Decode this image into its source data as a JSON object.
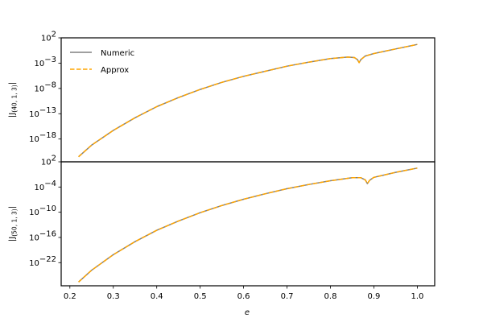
{
  "chart_data": [
    {
      "type": "line",
      "panel": "top",
      "ylabel": "|J_(40,1,3)|",
      "ylabel_main": "|J",
      "ylabel_sub": "(40, 1, 3)",
      "ylabel_close": "|",
      "yscale": "log",
      "ylim_log10": [
        -22.5,
        2
      ],
      "yticks": [
        {
          "exp": "2",
          "value": 2
        },
        {
          "exp": "−3",
          "value": -3
        },
        {
          "exp": "−8",
          "value": -8
        },
        {
          "exp": "−13",
          "value": -13
        },
        {
          "exp": "−18",
          "value": -18
        }
      ],
      "legend": [
        {
          "label": "Numeric",
          "style": "solid",
          "color": "#808080"
        },
        {
          "label": "Approx",
          "style": "dashed",
          "color": "#FFA500"
        }
      ],
      "series": [
        {
          "name": "Numeric",
          "x": [
            0.22,
            0.25,
            0.3,
            0.35,
            0.4,
            0.45,
            0.5,
            0.55,
            0.6,
            0.65,
            0.7,
            0.75,
            0.8,
            0.84,
            0.855,
            0.862,
            0.866,
            0.87,
            0.88,
            0.9,
            0.95,
            1.0
          ],
          "log10_y": [
            -21.5,
            -19.2,
            -16.3,
            -13.8,
            -11.6,
            -9.8,
            -8.2,
            -6.8,
            -5.6,
            -4.6,
            -3.6,
            -2.8,
            -2.1,
            -1.8,
            -1.9,
            -2.3,
            -2.9,
            -2.3,
            -1.6,
            -1.1,
            -0.2,
            0.7
          ]
        },
        {
          "name": "Approx",
          "x": [
            0.22,
            0.25,
            0.3,
            0.35,
            0.4,
            0.45,
            0.5,
            0.55,
            0.6,
            0.65,
            0.7,
            0.75,
            0.8,
            0.84,
            0.855,
            0.862,
            0.866,
            0.87,
            0.88,
            0.9,
            0.95,
            1.0
          ],
          "log10_y": [
            -21.5,
            -19.2,
            -16.3,
            -13.8,
            -11.6,
            -9.8,
            -8.2,
            -6.8,
            -5.6,
            -4.6,
            -3.6,
            -2.8,
            -2.1,
            -1.8,
            -1.9,
            -2.3,
            -2.9,
            -2.3,
            -1.6,
            -1.1,
            -0.2,
            0.7
          ]
        }
      ]
    },
    {
      "type": "line",
      "panel": "bottom",
      "ylabel": "|J_(50,1,3)|",
      "ylabel_main": "|J",
      "ylabel_sub": "(50, 1, 3)",
      "ylabel_close": "|",
      "xlabel": "e",
      "yscale": "log",
      "ylim_log10": [
        -27.5,
        2
      ],
      "xlim": [
        0.18,
        1.04
      ],
      "xticks": [
        "0.2",
        "0.3",
        "0.4",
        "0.5",
        "0.6",
        "0.7",
        "0.8",
        "0.9",
        "1.0"
      ],
      "yticks": [
        {
          "exp": "2",
          "value": 2
        },
        {
          "exp": "−4",
          "value": -4
        },
        {
          "exp": "−10",
          "value": -10
        },
        {
          "exp": "−16",
          "value": -16
        },
        {
          "exp": "−22",
          "value": -22
        }
      ],
      "series": [
        {
          "name": "Numeric",
          "x": [
            0.22,
            0.25,
            0.3,
            0.35,
            0.4,
            0.45,
            0.5,
            0.55,
            0.6,
            0.65,
            0.7,
            0.75,
            0.8,
            0.85,
            0.87,
            0.88,
            0.885,
            0.89,
            0.9,
            0.95,
            1.0
          ],
          "log10_y": [
            -26.6,
            -23.8,
            -20.1,
            -17.0,
            -14.3,
            -12.1,
            -10.1,
            -8.4,
            -6.9,
            -5.6,
            -4.4,
            -3.4,
            -2.5,
            -1.8,
            -1.8,
            -2.3,
            -3.2,
            -2.4,
            -1.7,
            -0.5,
            0.5
          ]
        },
        {
          "name": "Approx",
          "x": [
            0.22,
            0.25,
            0.3,
            0.35,
            0.4,
            0.45,
            0.5,
            0.55,
            0.6,
            0.65,
            0.7,
            0.75,
            0.8,
            0.85,
            0.87,
            0.88,
            0.885,
            0.89,
            0.9,
            0.95,
            1.0
          ],
          "log10_y": [
            -26.6,
            -23.8,
            -20.1,
            -17.0,
            -14.3,
            -12.1,
            -10.1,
            -8.4,
            -6.9,
            -5.6,
            -4.4,
            -3.4,
            -2.5,
            -1.8,
            -1.8,
            -2.3,
            -3.2,
            -2.4,
            -1.7,
            -0.5,
            0.5
          ]
        }
      ]
    }
  ],
  "labels": {
    "tick_base": "10",
    "xlabel": "e",
    "legend_numeric": "Numeric",
    "legend_approx": "Approx"
  },
  "colors": {
    "numeric": "#808080",
    "approx": "#FFA500",
    "axes": "#000000"
  }
}
